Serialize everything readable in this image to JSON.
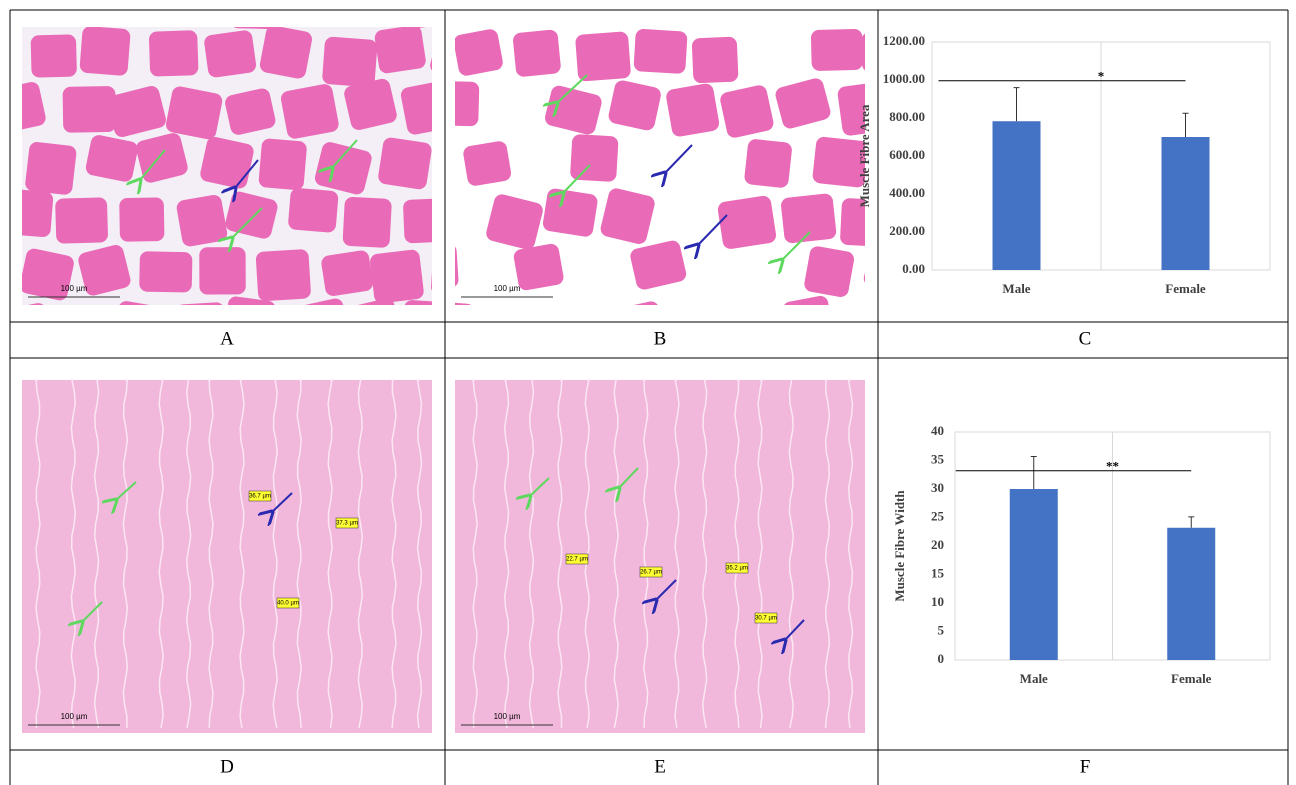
{
  "panels": [
    "A",
    "B",
    "C",
    "D",
    "E",
    "F"
  ],
  "images": [
    {
      "scale_bar": "100 µm"
    },
    {
      "scale_bar": "100 µm"
    },
    {
      "scale_bar": "100 µm",
      "measurements": [
        "36.7 µm",
        "37.3 µm",
        "40.0 µm"
      ]
    },
    {
      "scale_bar": "100 µm",
      "measurements": [
        "22.7 µm",
        "26.7 µm",
        "35.2 µm",
        "30.7 µm"
      ]
    }
  ],
  "chart_data": [
    {
      "type": "bar",
      "y_label": "Muscle Fibre Area",
      "categories": [
        "Male",
        "Female"
      ],
      "values": [
        783,
        700
      ],
      "errors": [
        177,
        125
      ],
      "color": "#4472c4",
      "annotation": "*",
      "ylim": [
        0,
        1200
      ],
      "yticks": [
        {
          "value": 0,
          "label": "0.00"
        },
        {
          "value": 200,
          "label": "200.00"
        },
        {
          "value": 400,
          "label": "400.00"
        },
        {
          "value": 600,
          "label": "600.00"
        },
        {
          "value": 800,
          "label": "800.00"
        },
        {
          "value": 1000,
          "label": "1000.00"
        },
        {
          "value": 1200,
          "label": "1200.00"
        }
      ]
    },
    {
      "type": "bar",
      "y_label": "Muscle Fibre Width",
      "categories": [
        "Male",
        "Female"
      ],
      "values": [
        30,
        23.2
      ],
      "errors": [
        5.7,
        1.9
      ],
      "color": "#4472c4",
      "annotation": "**",
      "ylim": [
        0,
        40
      ],
      "yticks": [
        0,
        5,
        10,
        15,
        20,
        25,
        30,
        35,
        40
      ]
    }
  ]
}
